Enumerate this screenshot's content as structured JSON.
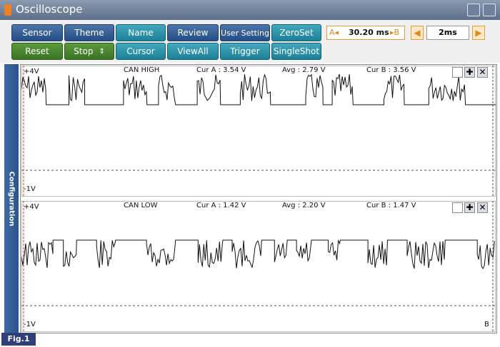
{
  "window": {
    "title": "Oscilloscope"
  },
  "toolbar": {
    "row1": [
      "Sensor",
      "Theme",
      "Name",
      "Review",
      "User Setting",
      "ZeroSet"
    ],
    "row2": [
      "Reset",
      "Stop",
      "Cursor",
      "ViewAll",
      "Trigger",
      "SingleShot"
    ],
    "cursor_a_label": "A",
    "cursor_value": "30.20 ms",
    "cursor_b_label": "B",
    "time_div": "2ms"
  },
  "sidebar": {
    "label": "Configuration"
  },
  "panels": [
    {
      "name": "CAN HIGH",
      "top_scale": "+4V",
      "bottom_scale": "-1V",
      "cur_a": "Cur A : 3.54 V",
      "avg": "Avg : 2.79 V",
      "cur_b": "Cur B : 3.56 V",
      "cursor_b_marker": ""
    },
    {
      "name": "CAN LOW",
      "top_scale": "+4V",
      "bottom_scale": "-1V",
      "cur_a": "Cur A : 1.42 V",
      "avg": "Avg : 2.20 V",
      "cur_b": "Cur B : 1.47 V",
      "cursor_b_marker": "B"
    }
  ],
  "footer": {
    "fig": "Fig.1"
  },
  "colors": {
    "accent": "#2c548c",
    "teal": "#1d8098",
    "green": "#3a7424",
    "cursor": "#e08a1a"
  },
  "icons": [
    "oscilloscope-icon",
    "restore-window-icon",
    "menu-icon",
    "plus-icon",
    "close-icon",
    "checkbox-icon",
    "left-arrow-icon",
    "right-arrow-icon"
  ]
}
